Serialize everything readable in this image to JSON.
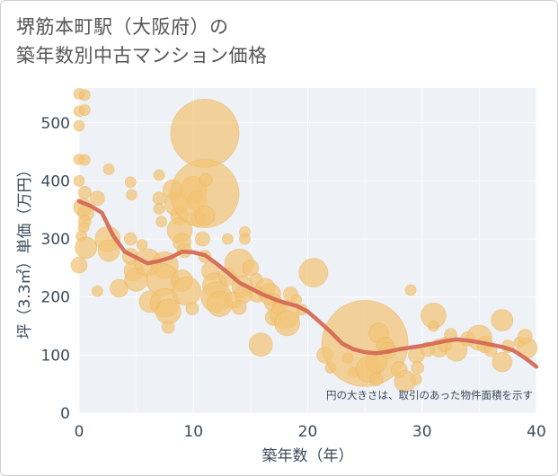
{
  "title_line1": "堺筋本町駅（大阪府）の",
  "title_line2": "築年数別中古マンション価格",
  "colors": {
    "bubble": "#f2c475",
    "bubble_stroke": "#e8b35c",
    "trend": "#d46a55",
    "plot_bg": "#eef1f6",
    "grid": "#ffffff",
    "axis_text": "#3b4a5a"
  },
  "chart_data": {
    "type": "scatter",
    "title": "堺筋本町駅（大阪府）の築年数別中古マンション価格",
    "xlabel": "築年数（年）",
    "ylabel": "坪（3.3㎡）単価（万円）",
    "xlim": [
      0,
      40
    ],
    "ylim": [
      0,
      560
    ],
    "x_ticks": [
      0,
      10,
      20,
      30,
      40
    ],
    "y_ticks": [
      0,
      100,
      200,
      300,
      400,
      500
    ],
    "note": "円の大きさは、取引のあった物件面積を示す",
    "grid": true,
    "bubbles": [
      {
        "x": 0,
        "y": 550,
        "s": 6
      },
      {
        "x": 0,
        "y": 520,
        "s": 6
      },
      {
        "x": 0,
        "y": 495,
        "s": 6
      },
      {
        "x": 0.5,
        "y": 548,
        "s": 6
      },
      {
        "x": 0.5,
        "y": 522,
        "s": 6
      },
      {
        "x": 0,
        "y": 437,
        "s": 6
      },
      {
        "x": 0.5,
        "y": 436,
        "s": 6
      },
      {
        "x": 0,
        "y": 400,
        "s": 6
      },
      {
        "x": 0.5,
        "y": 380,
        "s": 7
      },
      {
        "x": 0.3,
        "y": 355,
        "s": 10
      },
      {
        "x": 0.6,
        "y": 345,
        "s": 9
      },
      {
        "x": 0.5,
        "y": 330,
        "s": 7
      },
      {
        "x": 0.4,
        "y": 320,
        "s": 6
      },
      {
        "x": 0.2,
        "y": 305,
        "s": 6
      },
      {
        "x": 0.6,
        "y": 285,
        "s": 12
      },
      {
        "x": 0,
        "y": 255,
        "s": 9
      },
      {
        "x": 1.6,
        "y": 370,
        "s": 8
      },
      {
        "x": 2.6,
        "y": 420,
        "s": 6
      },
      {
        "x": 1.6,
        "y": 210,
        "s": 6
      },
      {
        "x": 2.5,
        "y": 300,
        "s": 14
      },
      {
        "x": 2.6,
        "y": 280,
        "s": 12
      },
      {
        "x": 3.5,
        "y": 215,
        "s": 10
      },
      {
        "x": 4.5,
        "y": 398,
        "s": 6
      },
      {
        "x": 4.6,
        "y": 376,
        "s": 6
      },
      {
        "x": 4.5,
        "y": 300,
        "s": 7
      },
      {
        "x": 4.5,
        "y": 270,
        "s": 9
      },
      {
        "x": 4.8,
        "y": 245,
        "s": 11
      },
      {
        "x": 5.0,
        "y": 230,
        "s": 13
      },
      {
        "x": 5.5,
        "y": 290,
        "s": 6
      },
      {
        "x": 6.0,
        "y": 260,
        "s": 15
      },
      {
        "x": 6.2,
        "y": 192,
        "s": 12
      },
      {
        "x": 7.0,
        "y": 410,
        "s": 6
      },
      {
        "x": 7.0,
        "y": 370,
        "s": 7
      },
      {
        "x": 7.0,
        "y": 352,
        "s": 6
      },
      {
        "x": 7.2,
        "y": 330,
        "s": 6
      },
      {
        "x": 7.5,
        "y": 255,
        "s": 15
      },
      {
        "x": 7.3,
        "y": 230,
        "s": 18
      },
      {
        "x": 7.5,
        "y": 190,
        "s": 16
      },
      {
        "x": 7.8,
        "y": 175,
        "s": 14
      },
      {
        "x": 7.8,
        "y": 148,
        "s": 7
      },
      {
        "x": 8.2,
        "y": 385,
        "s": 11
      },
      {
        "x": 8.5,
        "y": 360,
        "s": 13
      },
      {
        "x": 8.8,
        "y": 340,
        "s": 10
      },
      {
        "x": 8.8,
        "y": 315,
        "s": 14
      },
      {
        "x": 9.0,
        "y": 295,
        "s": 10
      },
      {
        "x": 9.2,
        "y": 280,
        "s": 8
      },
      {
        "x": 9.0,
        "y": 228,
        "s": 12
      },
      {
        "x": 9.4,
        "y": 210,
        "s": 16
      },
      {
        "x": 9.9,
        "y": 180,
        "s": 7
      },
      {
        "x": 10.0,
        "y": 385,
        "s": 15
      },
      {
        "x": 10.3,
        "y": 365,
        "s": 11
      },
      {
        "x": 10.4,
        "y": 335,
        "s": 9
      },
      {
        "x": 11.0,
        "y": 482,
        "s": 38
      },
      {
        "x": 11.0,
        "y": 378,
        "s": 38
      },
      {
        "x": 11.1,
        "y": 402,
        "s": 7
      },
      {
        "x": 11.0,
        "y": 340,
        "s": 11
      },
      {
        "x": 10.8,
        "y": 300,
        "s": 8
      },
      {
        "x": 11.0,
        "y": 270,
        "s": 7
      },
      {
        "x": 11.5,
        "y": 245,
        "s": 10
      },
      {
        "x": 11.9,
        "y": 220,
        "s": 14
      },
      {
        "x": 12.0,
        "y": 200,
        "s": 17
      },
      {
        "x": 12.3,
        "y": 188,
        "s": 14
      },
      {
        "x": 13.0,
        "y": 300,
        "s": 6
      },
      {
        "x": 13.0,
        "y": 235,
        "s": 10
      },
      {
        "x": 13.5,
        "y": 195,
        "s": 9
      },
      {
        "x": 14.0,
        "y": 258,
        "s": 16
      },
      {
        "x": 14.3,
        "y": 218,
        "s": 12
      },
      {
        "x": 14.4,
        "y": 205,
        "s": 10
      },
      {
        "x": 14.0,
        "y": 182,
        "s": 8
      },
      {
        "x": 14.5,
        "y": 312,
        "s": 6
      },
      {
        "x": 14.5,
        "y": 300,
        "s": 6
      },
      {
        "x": 15.0,
        "y": 250,
        "s": 9
      },
      {
        "x": 15.5,
        "y": 230,
        "s": 7
      },
      {
        "x": 15.6,
        "y": 205,
        "s": 9
      },
      {
        "x": 15.9,
        "y": 118,
        "s": 13
      },
      {
        "x": 16.3,
        "y": 215,
        "s": 11
      },
      {
        "x": 16.7,
        "y": 205,
        "s": 12
      },
      {
        "x": 17.0,
        "y": 190,
        "s": 10
      },
      {
        "x": 17.0,
        "y": 165,
        "s": 9
      },
      {
        "x": 17.5,
        "y": 182,
        "s": 8
      },
      {
        "x": 18.0,
        "y": 170,
        "s": 16
      },
      {
        "x": 18.2,
        "y": 155,
        "s": 14
      },
      {
        "x": 18.5,
        "y": 205,
        "s": 8
      },
      {
        "x": 19.0,
        "y": 195,
        "s": 6
      },
      {
        "x": 19.5,
        "y": 178,
        "s": 6
      },
      {
        "x": 20.5,
        "y": 242,
        "s": 16
      },
      {
        "x": 21.5,
        "y": 100,
        "s": 9
      },
      {
        "x": 22.0,
        "y": 78,
        "s": 6
      },
      {
        "x": 23.5,
        "y": 95,
        "s": 6
      },
      {
        "x": 24.0,
        "y": 70,
        "s": 6
      },
      {
        "x": 25.0,
        "y": 120,
        "s": 48
      },
      {
        "x": 25.3,
        "y": 75,
        "s": 14
      },
      {
        "x": 26.0,
        "y": 88,
        "s": 12
      },
      {
        "x": 26.2,
        "y": 138,
        "s": 11
      },
      {
        "x": 26.8,
        "y": 115,
        "s": 10
      },
      {
        "x": 26.0,
        "y": 58,
        "s": 7
      },
      {
        "x": 27.0,
        "y": 108,
        "s": 9
      },
      {
        "x": 28.0,
        "y": 75,
        "s": 9
      },
      {
        "x": 28.5,
        "y": 55,
        "s": 12
      },
      {
        "x": 29.0,
        "y": 212,
        "s": 6
      },
      {
        "x": 29.5,
        "y": 100,
        "s": 9
      },
      {
        "x": 29.6,
        "y": 78,
        "s": 7
      },
      {
        "x": 29.5,
        "y": 58,
        "s": 6
      },
      {
        "x": 30.5,
        "y": 110,
        "s": 8
      },
      {
        "x": 31.0,
        "y": 150,
        "s": 6
      },
      {
        "x": 31.0,
        "y": 168,
        "s": 14
      },
      {
        "x": 31.5,
        "y": 112,
        "s": 10
      },
      {
        "x": 32.0,
        "y": 118,
        "s": 8
      },
      {
        "x": 32.5,
        "y": 135,
        "s": 7
      },
      {
        "x": 33.0,
        "y": 108,
        "s": 12
      },
      {
        "x": 34.0,
        "y": 128,
        "s": 8
      },
      {
        "x": 35.0,
        "y": 130,
        "s": 14
      },
      {
        "x": 35.5,
        "y": 118,
        "s": 9
      },
      {
        "x": 36.0,
        "y": 108,
        "s": 7
      },
      {
        "x": 37.0,
        "y": 160,
        "s": 12
      },
      {
        "x": 37.0,
        "y": 88,
        "s": 11
      },
      {
        "x": 37.5,
        "y": 115,
        "s": 7
      },
      {
        "x": 38.5,
        "y": 122,
        "s": 6
      },
      {
        "x": 39.0,
        "y": 132,
        "s": 8
      },
      {
        "x": 39.2,
        "y": 112,
        "s": 11
      }
    ],
    "trend": {
      "name": "trend",
      "x": [
        0,
        1,
        2,
        3,
        4,
        5,
        6,
        7,
        8,
        9,
        10,
        11,
        12,
        13,
        14,
        15,
        16,
        17,
        18,
        19,
        20,
        21,
        22,
        23,
        24,
        25,
        26,
        27,
        28,
        29,
        30,
        31,
        32,
        33,
        34,
        35,
        36,
        37,
        38,
        39,
        40
      ],
      "y": [
        365,
        357,
        345,
        305,
        278,
        268,
        258,
        262,
        268,
        278,
        277,
        272,
        258,
        242,
        225,
        215,
        205,
        197,
        190,
        185,
        175,
        158,
        140,
        120,
        110,
        105,
        103,
        106,
        110,
        113,
        116,
        120,
        124,
        127,
        125,
        122,
        118,
        114,
        108,
        95,
        80
      ]
    }
  }
}
